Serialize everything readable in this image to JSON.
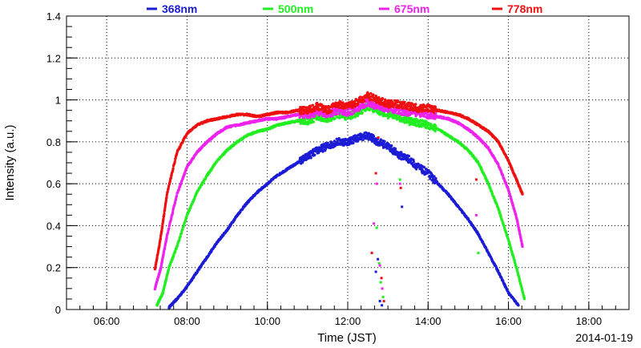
{
  "chart_data": {
    "type": "scatter",
    "xlabel": "Time (JST)",
    "ylabel": "Intensity (a.u.)",
    "date_label": "2014-01-19",
    "xlim": [
      5.0,
      19.0
    ],
    "ylim": [
      0,
      1.4
    ],
    "grid": true,
    "legend_position": "top",
    "x_ticks": [
      {
        "value": 6,
        "label": "06:00"
      },
      {
        "value": 8,
        "label": "08:00"
      },
      {
        "value": 10,
        "label": "10:00"
      },
      {
        "value": 12,
        "label": "12:00"
      },
      {
        "value": 14,
        "label": "14:00"
      },
      {
        "value": 16,
        "label": "16:00"
      },
      {
        "value": 18,
        "label": "18:00"
      }
    ],
    "y_ticks": [
      {
        "value": 0,
        "label": "0"
      },
      {
        "value": 0.2,
        "label": "0.2"
      },
      {
        "value": 0.4,
        "label": "0.4"
      },
      {
        "value": 0.6,
        "label": "0.6"
      },
      {
        "value": 0.8,
        "label": "0.8"
      },
      {
        "value": 1.0,
        "label": "1"
      },
      {
        "value": 1.2,
        "label": "1.2"
      },
      {
        "value": 1.4,
        "label": "1.4"
      }
    ],
    "series": [
      {
        "name": "368nm",
        "color": "#1c1cd6",
        "x": [
          7.55,
          7.75,
          8.0,
          8.25,
          8.5,
          8.75,
          9.0,
          9.25,
          9.5,
          9.75,
          10.0,
          10.25,
          10.5,
          10.75,
          11.0,
          11.25,
          11.5,
          11.75,
          12.0,
          12.25,
          12.5,
          12.75,
          13.0,
          13.25,
          13.5,
          13.75,
          14.0,
          14.25,
          14.5,
          14.75,
          15.0,
          15.25,
          15.5,
          15.75,
          16.0,
          16.25
        ],
        "y": [
          0.01,
          0.05,
          0.11,
          0.18,
          0.25,
          0.32,
          0.38,
          0.45,
          0.51,
          0.56,
          0.6,
          0.64,
          0.67,
          0.7,
          0.73,
          0.76,
          0.78,
          0.8,
          0.8,
          0.82,
          0.83,
          0.8,
          0.78,
          0.74,
          0.72,
          0.68,
          0.65,
          0.6,
          0.55,
          0.49,
          0.43,
          0.36,
          0.27,
          0.18,
          0.08,
          0.02
        ]
      },
      {
        "name": "500nm",
        "color": "#22ee22",
        "x": [
          7.25,
          7.4,
          7.55,
          7.75,
          8.0,
          8.25,
          8.5,
          8.75,
          9.0,
          9.25,
          9.5,
          9.75,
          10.0,
          10.25,
          10.5,
          10.75,
          11.0,
          11.25,
          11.5,
          11.75,
          12.0,
          12.25,
          12.5,
          12.75,
          13.0,
          13.25,
          13.5,
          13.75,
          14.0,
          14.25,
          14.5,
          14.75,
          15.0,
          15.25,
          15.5,
          15.75,
          16.0,
          16.2,
          16.4
        ],
        "y": [
          0.02,
          0.08,
          0.2,
          0.3,
          0.45,
          0.56,
          0.64,
          0.71,
          0.76,
          0.8,
          0.83,
          0.85,
          0.86,
          0.88,
          0.89,
          0.9,
          0.9,
          0.92,
          0.91,
          0.93,
          0.92,
          0.94,
          0.97,
          0.95,
          0.93,
          0.92,
          0.9,
          0.89,
          0.88,
          0.86,
          0.83,
          0.8,
          0.76,
          0.7,
          0.6,
          0.48,
          0.33,
          0.2,
          0.05
        ]
      },
      {
        "name": "675nm",
        "color": "#ee22ee",
        "x": [
          7.2,
          7.35,
          7.5,
          7.75,
          8.0,
          8.25,
          8.5,
          8.75,
          9.0,
          9.25,
          9.5,
          9.75,
          10.0,
          10.25,
          10.5,
          10.75,
          11.0,
          11.25,
          11.5,
          11.75,
          12.0,
          12.25,
          12.5,
          12.75,
          13.0,
          13.25,
          13.5,
          13.75,
          14.0,
          14.25,
          14.5,
          14.75,
          15.0,
          15.25,
          15.5,
          15.75,
          16.0,
          16.2,
          16.35
        ],
        "y": [
          0.1,
          0.2,
          0.35,
          0.55,
          0.68,
          0.75,
          0.8,
          0.84,
          0.87,
          0.88,
          0.89,
          0.9,
          0.91,
          0.91,
          0.92,
          0.93,
          0.93,
          0.94,
          0.93,
          0.95,
          0.94,
          0.96,
          0.99,
          0.97,
          0.96,
          0.95,
          0.94,
          0.94,
          0.93,
          0.92,
          0.91,
          0.89,
          0.86,
          0.82,
          0.77,
          0.69,
          0.57,
          0.44,
          0.3
        ]
      },
      {
        "name": "778nm",
        "color": "#ee1111",
        "x": [
          7.2,
          7.35,
          7.5,
          7.75,
          8.0,
          8.25,
          8.5,
          8.75,
          9.0,
          9.25,
          9.5,
          9.75,
          10.0,
          10.25,
          10.5,
          10.75,
          11.0,
          11.25,
          11.5,
          11.75,
          12.0,
          12.25,
          12.5,
          12.75,
          13.0,
          13.25,
          13.5,
          13.75,
          14.0,
          14.25,
          14.5,
          14.75,
          15.0,
          15.25,
          15.5,
          15.75,
          16.0,
          16.2,
          16.35
        ],
        "y": [
          0.19,
          0.35,
          0.55,
          0.75,
          0.84,
          0.88,
          0.9,
          0.91,
          0.92,
          0.93,
          0.93,
          0.92,
          0.93,
          0.94,
          0.94,
          0.95,
          0.95,
          0.97,
          0.95,
          0.98,
          0.97,
          0.99,
          1.02,
          1.0,
          0.98,
          0.98,
          0.97,
          0.96,
          0.96,
          0.95,
          0.94,
          0.93,
          0.91,
          0.88,
          0.85,
          0.8,
          0.71,
          0.62,
          0.55
        ]
      }
    ],
    "outliers": [
      {
        "series": "368nm",
        "x": [
          12.7,
          12.75,
          12.8,
          12.85,
          13.35
        ],
        "y": [
          0.18,
          0.24,
          0.04,
          0.02,
          0.49
        ]
      },
      {
        "series": "500nm",
        "x": [
          12.72,
          12.78,
          12.82,
          12.88,
          13.3,
          15.25
        ],
        "y": [
          0.39,
          0.22,
          0.13,
          0.06,
          0.62,
          0.27
        ]
      },
      {
        "series": "675nm",
        "x": [
          12.65,
          12.72,
          12.8,
          12.86,
          13.3,
          15.2
        ],
        "y": [
          0.41,
          0.6,
          0.21,
          0.1,
          0.6,
          0.45
        ]
      },
      {
        "series": "778nm",
        "x": [
          12.6,
          12.7,
          12.76,
          12.84,
          12.9,
          13.32,
          15.2
        ],
        "y": [
          0.27,
          0.65,
          0.82,
          0.15,
          0.04,
          0.58,
          0.62
        ]
      }
    ]
  }
}
